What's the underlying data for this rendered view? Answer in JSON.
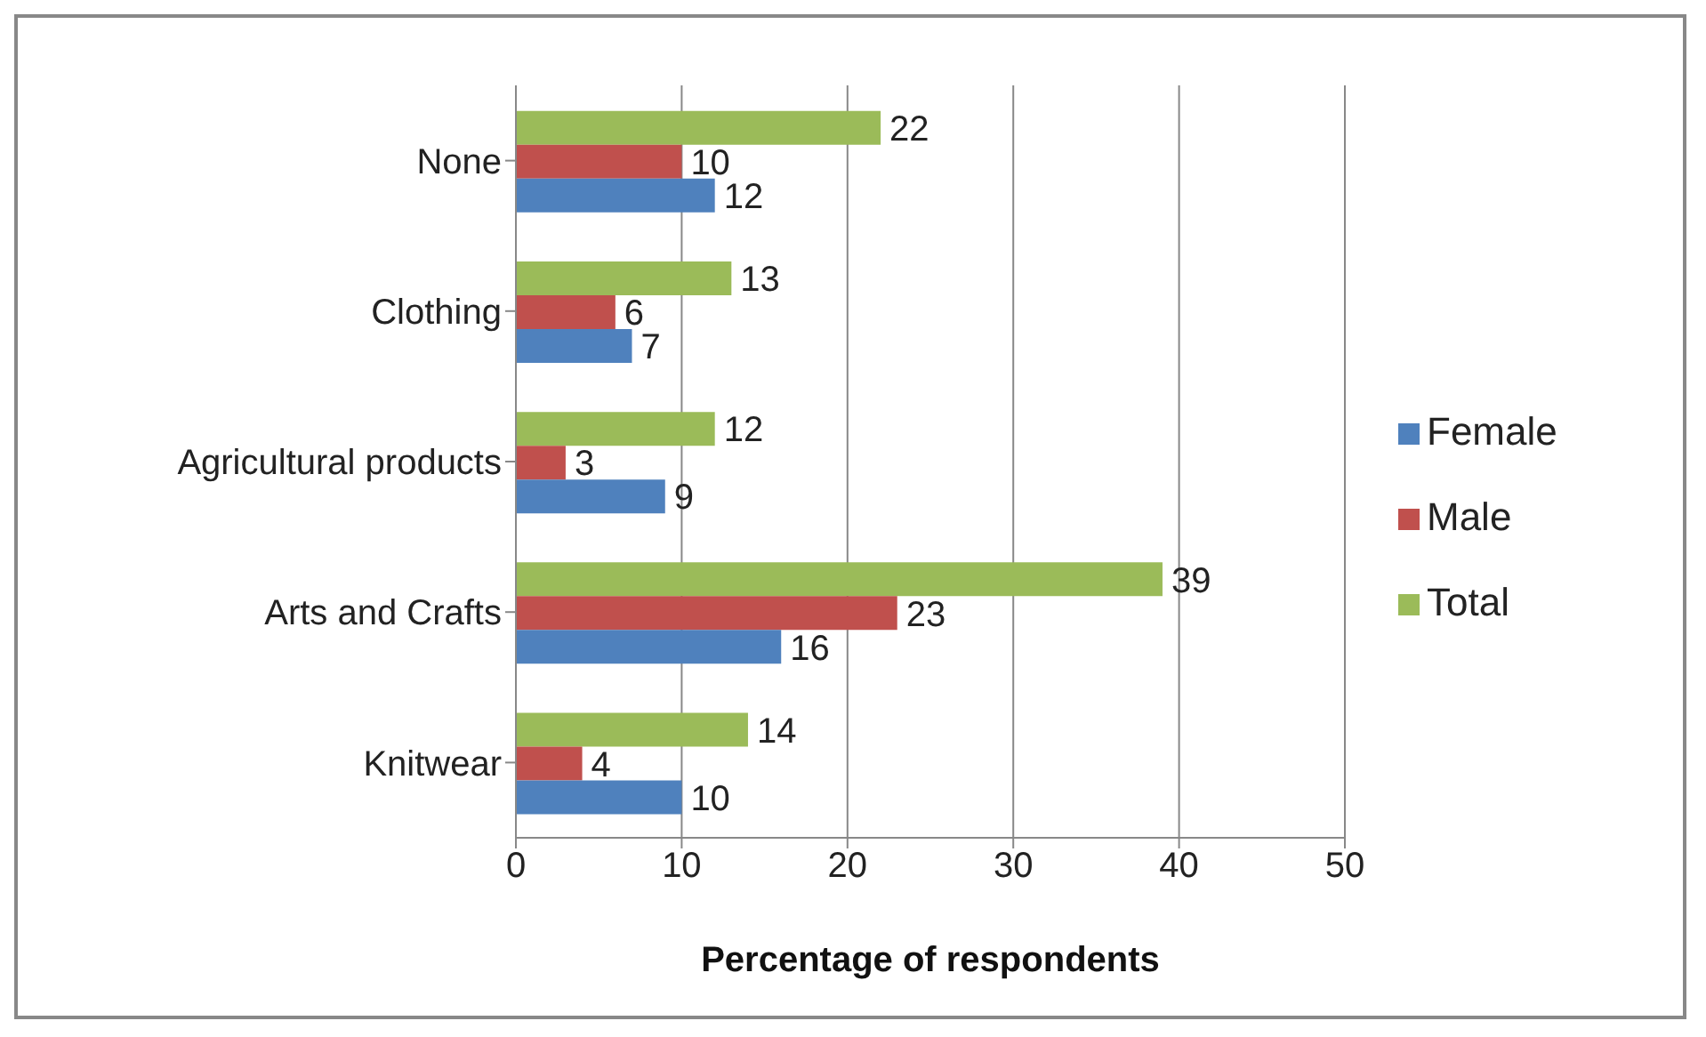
{
  "chart_data": {
    "type": "bar",
    "orientation": "horizontal",
    "xlabel": "Percentage of respondents",
    "categories": [
      "None",
      "Clothing",
      "Agricultural products",
      "Arts and Crafts",
      "Knitwear"
    ],
    "series": [
      {
        "name": "Total",
        "color": "#9bbb59",
        "values": [
          22,
          13,
          12,
          39,
          14
        ]
      },
      {
        "name": "Male",
        "color": "#c0504d",
        "values": [
          10,
          6,
          3,
          23,
          4
        ]
      },
      {
        "name": "Female",
        "color": "#4f81bd",
        "values": [
          12,
          7,
          9,
          16,
          10
        ]
      }
    ],
    "xlim": [
      0,
      50
    ],
    "xticks": [
      0,
      10,
      20,
      30,
      40,
      50
    ],
    "grid": "x",
    "legend": "right",
    "data_labels": true
  }
}
